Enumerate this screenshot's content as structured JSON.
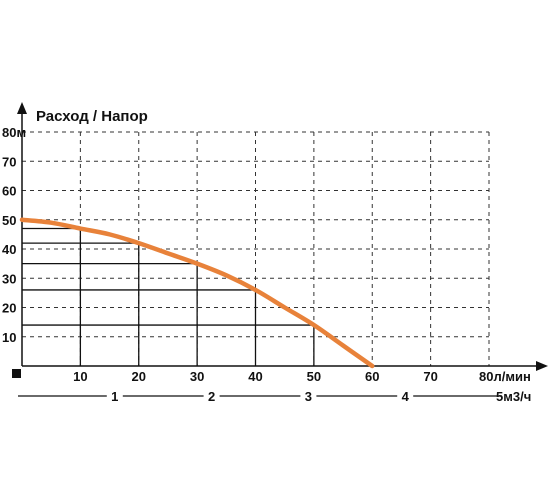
{
  "chart_data": {
    "type": "line",
    "title": "Расход / Напор",
    "y_unit": "м",
    "x_unit": "л/мин",
    "x2_unit": "м3/ч",
    "ylim": [
      0,
      80
    ],
    "xlim": [
      0,
      80
    ],
    "y_ticks": [
      10,
      20,
      30,
      40,
      50,
      60,
      70,
      80
    ],
    "x_ticks": [
      10,
      20,
      30,
      40,
      50,
      60,
      70,
      80
    ],
    "x2_ticks": [
      1,
      2,
      3,
      4,
      5
    ],
    "grid": true,
    "series": [
      {
        "x": [
          0,
          5,
          10,
          15,
          20,
          25,
          30,
          35,
          40,
          45,
          50,
          55,
          60
        ],
        "y": [
          50,
          49,
          47,
          45,
          42,
          38.5,
          35,
          31,
          26,
          20,
          14,
          7,
          0
        ],
        "color": "#e8823a"
      }
    ],
    "reference_points": [
      {
        "x": 10,
        "y": 47
      },
      {
        "x": 20,
        "y": 42
      },
      {
        "x": 30,
        "y": 35
      },
      {
        "x": 40,
        "y": 26
      },
      {
        "x": 50,
        "y": 14
      }
    ],
    "colors": {
      "curve": "#e8823a",
      "grid": "#333333",
      "axis": "#111111"
    }
  }
}
